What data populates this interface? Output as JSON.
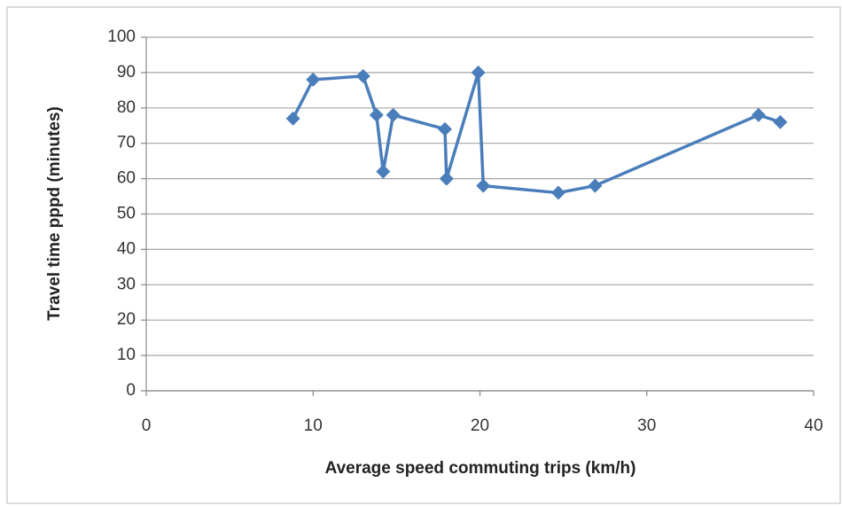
{
  "chart_data": {
    "type": "line",
    "x": [
      8.8,
      10,
      13,
      13.8,
      14.2,
      14.8,
      17.9,
      18,
      19.9,
      20.2,
      24.7,
      26.9,
      36.7,
      38
    ],
    "values": [
      77,
      88,
      89,
      78,
      62,
      78,
      74,
      60,
      90,
      58,
      56,
      58,
      78,
      76
    ],
    "color": "#4a7ebb",
    "x_label": "Average speed commuting trips (km/h)",
    "y_label": "Travel time pppd (minutes)",
    "xlim": [
      0,
      40
    ],
    "xticks": [
      0,
      10,
      20,
      30,
      40
    ],
    "ylim": [
      0,
      100
    ],
    "yticks": [
      0,
      10,
      20,
      30,
      40,
      50,
      60,
      70,
      80,
      90,
      100
    ],
    "grid": true,
    "marker": "diamond"
  }
}
